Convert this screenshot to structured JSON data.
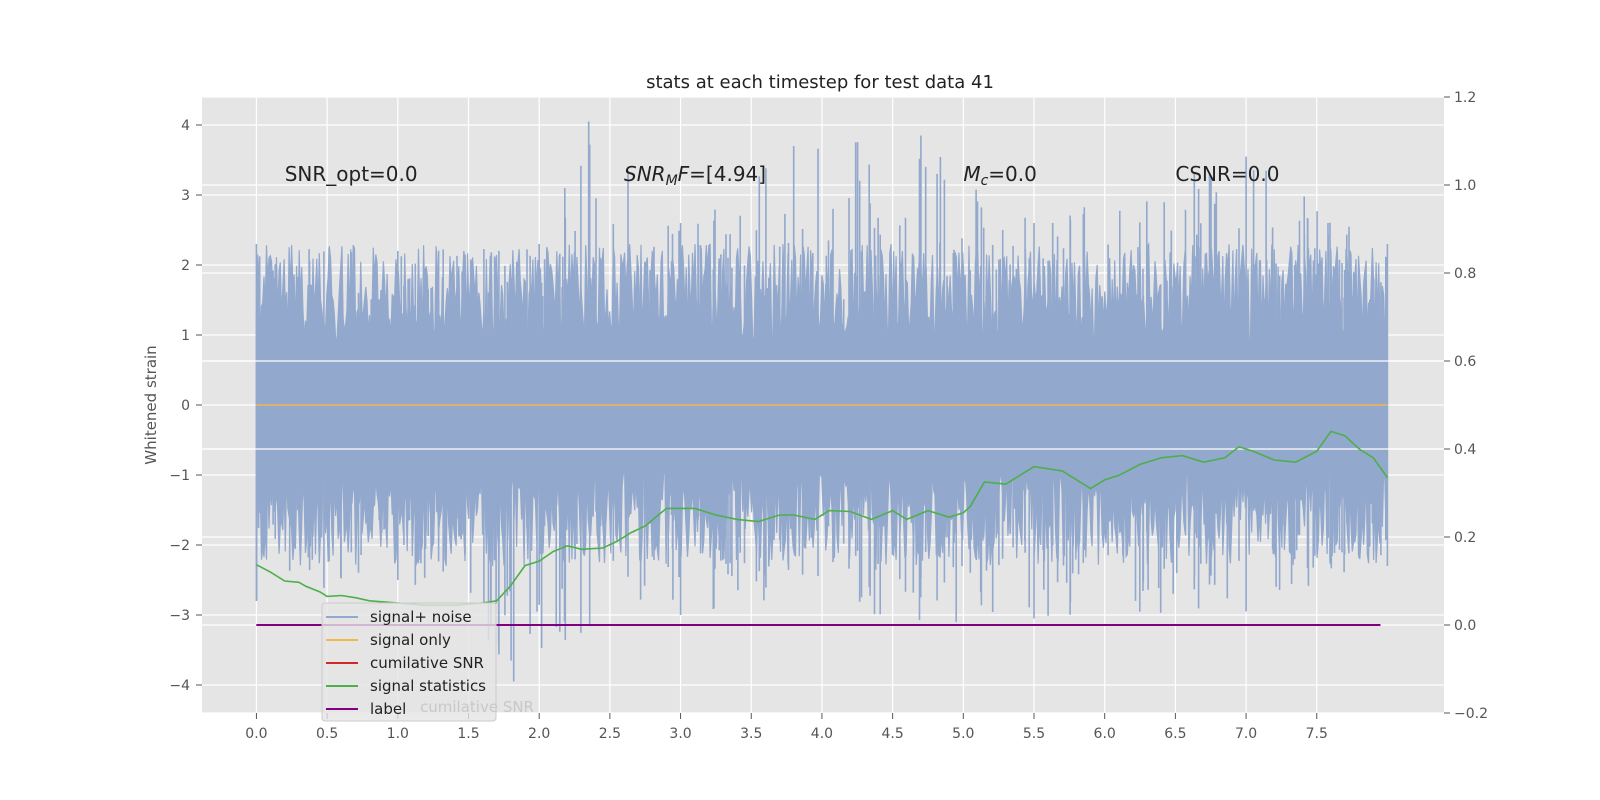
{
  "chart_data": {
    "type": "line",
    "title": "stats at each timestep for test data 41",
    "ylabel": "Whitened strain",
    "y2label": "",
    "xlim": [
      -0.385,
      8.4
    ],
    "ylim": [
      -4.4,
      4.4
    ],
    "y2lim": [
      -0.2,
      1.2
    ],
    "x_ticks": [
      0.0,
      0.5,
      1.0,
      1.5,
      2.0,
      2.5,
      3.0,
      3.5,
      4.0,
      4.5,
      5.0,
      5.5,
      6.0,
      6.5,
      7.0,
      7.5
    ],
    "x_tick_labels": [
      "0.0",
      "0.5",
      "1.0",
      "1.5",
      "2.0",
      "2.5",
      "3.0",
      "3.5",
      "4.0",
      "4.5",
      "5.0",
      "5.5",
      "6.0",
      "6.5",
      "7.0",
      "7.5"
    ],
    "y_ticks": [
      -4,
      -3,
      -2,
      -1,
      0,
      1,
      2,
      3,
      4
    ],
    "y_tick_labels": [
      "−4",
      "−3",
      "−2",
      "−1",
      "0",
      "1",
      "2",
      "3",
      "4"
    ],
    "y2_ticks": [
      -0.2,
      0.0,
      0.2,
      0.4,
      0.6,
      0.8,
      1.0,
      1.2
    ],
    "y2_tick_labels": [
      "−0.2",
      "0.0",
      "0.2",
      "0.4",
      "0.6",
      "0.8",
      "1.0",
      "1.2"
    ],
    "grid": true,
    "legend_position": "lower-left",
    "annotations": [
      {
        "text": "SNR_opt=0.0",
        "x": 0.2,
        "y": 3.2
      },
      {
        "text": "SNR_MF=[4.94]",
        "x": 2.6,
        "y": 3.2
      },
      {
        "text": "M_c=0.0",
        "x": 5.0,
        "y": 3.2
      },
      {
        "text": "CSNR=0.0",
        "x": 6.5,
        "y": 3.2
      }
    ],
    "series": [
      {
        "name": "signal+ noise",
        "axis": "left",
        "color": "#92a8cd",
        "kind": "noise",
        "x_range": [
          0.0,
          8.0
        ],
        "envelope_upper": [
          [
            0.0,
            2.3
          ],
          [
            1.0,
            2.2
          ],
          [
            2.0,
            2.3
          ],
          [
            2.35,
            4.05
          ],
          [
            3.0,
            2.6
          ],
          [
            3.8,
            3.7
          ],
          [
            4.7,
            3.85
          ],
          [
            5.5,
            2.6
          ],
          [
            7.0,
            3.55
          ],
          [
            8.0,
            2.3
          ]
        ],
        "envelope_lower": [
          [
            0.0,
            -2.8
          ],
          [
            1.0,
            -2.5
          ],
          [
            1.82,
            -3.95
          ],
          [
            3.0,
            -3.0
          ],
          [
            4.95,
            -3.1
          ],
          [
            5.5,
            -3.05
          ],
          [
            7.0,
            -2.95
          ],
          [
            8.0,
            -2.3
          ]
        ]
      },
      {
        "name": "signal only",
        "axis": "left",
        "color": "#f2b84b",
        "x": [
          0.0,
          8.0
        ],
        "values": [
          0.0,
          0.0
        ]
      },
      {
        "name": "cumilative SNR",
        "axis": "right",
        "color": "#d62728",
        "x": [
          0.0,
          7.95
        ],
        "values": [
          0.0,
          0.0
        ]
      },
      {
        "name": "signal statistics",
        "axis": "right",
        "color": "#4daf4a",
        "x": [
          0.0,
          0.1,
          0.2,
          0.3,
          0.35,
          0.45,
          0.5,
          0.6,
          0.7,
          0.8,
          1.0,
          1.2,
          1.4,
          1.6,
          1.7,
          1.8,
          1.9,
          2.0,
          2.1,
          2.2,
          2.3,
          2.45,
          2.55,
          2.65,
          2.75,
          2.9,
          3.0,
          3.1,
          3.25,
          3.4,
          3.55,
          3.7,
          3.8,
          3.95,
          4.05,
          4.2,
          4.35,
          4.5,
          4.6,
          4.75,
          4.9,
          5.0,
          5.05,
          5.15,
          5.3,
          5.5,
          5.7,
          5.9,
          6.0,
          6.1,
          6.25,
          6.4,
          6.55,
          6.7,
          6.85,
          6.95,
          7.05,
          7.2,
          7.35,
          7.5,
          7.6,
          7.7,
          7.8,
          7.9,
          8.0
        ],
        "values": [
          0.137,
          0.12,
          0.1,
          0.097,
          0.088,
          0.075,
          0.065,
          0.067,
          0.062,
          0.055,
          0.05,
          0.045,
          0.045,
          0.05,
          0.055,
          0.09,
          0.135,
          0.145,
          0.167,
          0.18,
          0.172,
          0.175,
          0.19,
          0.21,
          0.225,
          0.265,
          0.265,
          0.265,
          0.25,
          0.24,
          0.235,
          0.25,
          0.25,
          0.24,
          0.26,
          0.258,
          0.24,
          0.26,
          0.24,
          0.26,
          0.245,
          0.255,
          0.27,
          0.325,
          0.32,
          0.36,
          0.35,
          0.31,
          0.33,
          0.34,
          0.365,
          0.38,
          0.385,
          0.37,
          0.38,
          0.405,
          0.395,
          0.375,
          0.37,
          0.395,
          0.44,
          0.43,
          0.4,
          0.38,
          0.335
        ]
      },
      {
        "name": "label",
        "axis": "right",
        "color": "#800080",
        "x": [
          0.0,
          7.95
        ],
        "values": [
          0.0,
          0.0
        ]
      }
    ]
  }
}
